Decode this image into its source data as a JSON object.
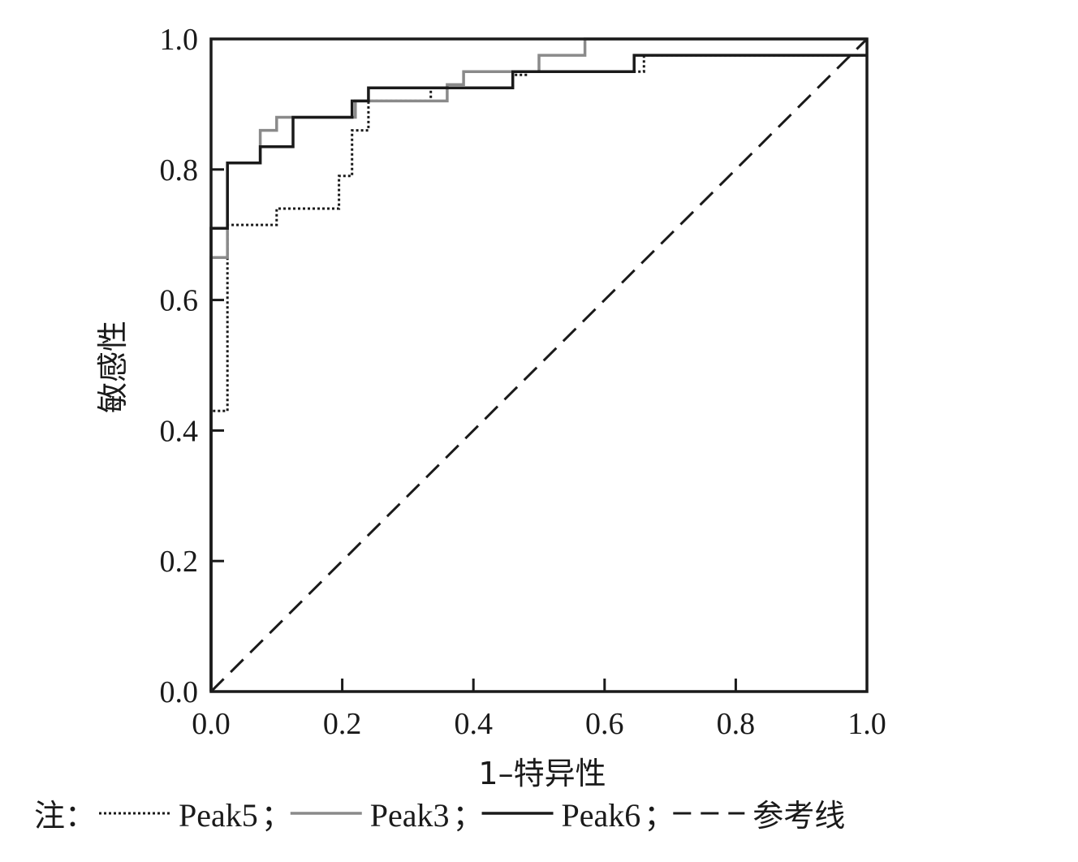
{
  "chart_data": {
    "type": "line",
    "title": "",
    "xlabel": "1–特异性",
    "ylabel": "敏感性",
    "xlim": [
      0,
      1
    ],
    "ylim": [
      0,
      1
    ],
    "x_ticks": [
      "0.0",
      "0.2",
      "0.4",
      "0.6",
      "0.8",
      "1.0"
    ],
    "y_ticks": [
      "0.0",
      "0.2",
      "0.4",
      "0.6",
      "0.8",
      "1.0"
    ],
    "grid": false,
    "legend": {
      "prefix": "注：",
      "position": "bottom",
      "separator": "；"
    },
    "series": [
      {
        "name": "Peak5",
        "style": "dotted",
        "color": "#1a1a1a",
        "points": [
          [
            0,
            0
          ],
          [
            0,
            0.43
          ],
          [
            0.025,
            0.43
          ],
          [
            0.025,
            0.715
          ],
          [
            0.1,
            0.715
          ],
          [
            0.1,
            0.74
          ],
          [
            0.195,
            0.74
          ],
          [
            0.195,
            0.79
          ],
          [
            0.215,
            0.79
          ],
          [
            0.215,
            0.86
          ],
          [
            0.24,
            0.86
          ],
          [
            0.24,
            0.905
          ],
          [
            0.335,
            0.905
          ],
          [
            0.335,
            0.925
          ],
          [
            0.46,
            0.925
          ],
          [
            0.46,
            0.945
          ],
          [
            0.48,
            0.945
          ],
          [
            0.48,
            0.95
          ],
          [
            0.66,
            0.95
          ],
          [
            0.66,
            0.975
          ],
          [
            1,
            0.975
          ],
          [
            1,
            1
          ]
        ]
      },
      {
        "name": "Peak3",
        "style": "solid",
        "color": "#8a8a8a",
        "points": [
          [
            0,
            0
          ],
          [
            0,
            0.665
          ],
          [
            0.025,
            0.665
          ],
          [
            0.025,
            0.81
          ],
          [
            0.075,
            0.81
          ],
          [
            0.075,
            0.86
          ],
          [
            0.1,
            0.86
          ],
          [
            0.1,
            0.88
          ],
          [
            0.22,
            0.88
          ],
          [
            0.22,
            0.905
          ],
          [
            0.36,
            0.905
          ],
          [
            0.36,
            0.93
          ],
          [
            0.385,
            0.93
          ],
          [
            0.385,
            0.95
          ],
          [
            0.5,
            0.95
          ],
          [
            0.5,
            0.975
          ],
          [
            0.57,
            0.975
          ],
          [
            0.57,
            1
          ],
          [
            1,
            1
          ]
        ]
      },
      {
        "name": "Peak6",
        "style": "solid",
        "color": "#1a1a1a",
        "points": [
          [
            0,
            0
          ],
          [
            0,
            0.71
          ],
          [
            0.025,
            0.71
          ],
          [
            0.025,
            0.81
          ],
          [
            0.075,
            0.81
          ],
          [
            0.075,
            0.835
          ],
          [
            0.125,
            0.835
          ],
          [
            0.125,
            0.88
          ],
          [
            0.215,
            0.88
          ],
          [
            0.215,
            0.905
          ],
          [
            0.24,
            0.905
          ],
          [
            0.24,
            0.925
          ],
          [
            0.46,
            0.925
          ],
          [
            0.46,
            0.95
          ],
          [
            0.645,
            0.95
          ],
          [
            0.645,
            0.975
          ],
          [
            1,
            0.975
          ]
        ]
      },
      {
        "name": "参考线",
        "style": "dashed",
        "color": "#1a1a1a",
        "points": [
          [
            0,
            0
          ],
          [
            1,
            1
          ]
        ]
      }
    ]
  }
}
